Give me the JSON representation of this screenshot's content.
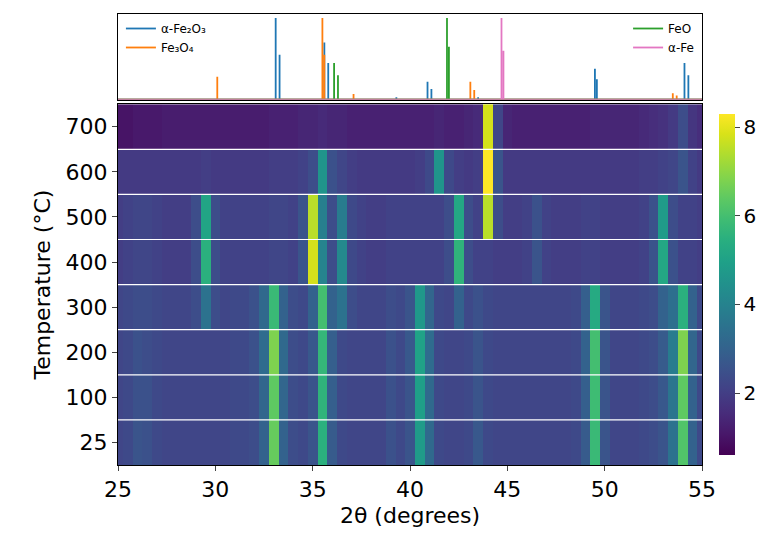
{
  "chart_data": [
    {
      "type": "heatmap",
      "x_label": "2θ (degrees)",
      "y_label": "Temperature (°C)",
      "color": "viridis",
      "xlim": [
        25,
        55
      ],
      "xticks": [
        25,
        30,
        35,
        40,
        45,
        50,
        55
      ],
      "categories": [
        25,
        100,
        200,
        300,
        400,
        500,
        600,
        700
      ],
      "color_range": [
        0.6,
        8.3
      ],
      "color_ticks": [
        2,
        4,
        6,
        8
      ],
      "x": [
        25,
        25.5,
        26,
        26.5,
        27,
        27.5,
        28,
        28.5,
        29,
        29.5,
        30,
        30.5,
        31,
        31.5,
        32,
        32.5,
        33,
        33.5,
        34,
        34.5,
        35,
        35.5,
        36,
        36.5,
        37,
        37.5,
        38,
        38.5,
        39,
        39.5,
        40,
        40.5,
        41,
        41.5,
        42,
        42.5,
        43,
        43.5,
        44,
        44.5,
        45,
        45.5,
        46,
        46.5,
        47,
        47.5,
        48,
        48.5,
        49,
        49.5,
        50,
        50.5,
        51,
        51.5,
        52,
        52.5,
        53,
        53.5,
        54,
        54.5,
        55
      ],
      "cells": [
        [
          2.2,
          2.3,
          2.6,
          2.5,
          2.3,
          2.2,
          2.2,
          2.2,
          2.2,
          2.2,
          2.2,
          2.2,
          2.3,
          2.3,
          2.4,
          3.0,
          6.5,
          3.0,
          2.4,
          2.3,
          2.6,
          5.5,
          2.8,
          2.3,
          2.2,
          2.2,
          2.2,
          2.2,
          2.5,
          2.3,
          2.6,
          4.8,
          3.2,
          2.3,
          2.2,
          2.2,
          2.3,
          2.7,
          2.3,
          2.2,
          2.2,
          2.2,
          2.2,
          2.2,
          2.2,
          2.2,
          2.2,
          2.3,
          2.8,
          5.8,
          2.6,
          2.2,
          2.2,
          2.2,
          2.3,
          2.4,
          2.6,
          3.5,
          6.2,
          3.0,
          2.3
        ],
        [
          2.2,
          2.3,
          2.5,
          2.5,
          2.3,
          2.2,
          2.2,
          2.2,
          2.2,
          2.2,
          2.2,
          2.2,
          2.3,
          2.3,
          2.4,
          3.1,
          6.4,
          3.1,
          2.4,
          2.3,
          2.6,
          5.6,
          2.9,
          2.3,
          2.2,
          2.2,
          2.2,
          2.2,
          2.5,
          2.3,
          2.6,
          4.9,
          3.2,
          2.3,
          2.2,
          2.2,
          2.3,
          2.6,
          2.3,
          2.2,
          2.2,
          2.2,
          2.2,
          2.2,
          2.2,
          2.2,
          2.2,
          2.3,
          2.9,
          5.9,
          2.6,
          2.2,
          2.2,
          2.2,
          2.3,
          2.4,
          2.7,
          3.6,
          6.4,
          3.0,
          2.3
        ],
        [
          2.2,
          2.3,
          2.5,
          2.4,
          2.3,
          2.2,
          2.2,
          2.2,
          2.2,
          2.2,
          2.2,
          2.2,
          2.3,
          2.3,
          2.5,
          3.3,
          6.8,
          3.2,
          2.4,
          2.3,
          2.7,
          5.7,
          2.9,
          2.3,
          2.2,
          2.2,
          2.2,
          2.2,
          2.5,
          2.3,
          2.7,
          5.0,
          3.3,
          2.3,
          2.2,
          2.2,
          2.3,
          2.6,
          2.3,
          2.2,
          2.2,
          2.2,
          2.2,
          2.2,
          2.2,
          2.2,
          2.2,
          2.3,
          3.0,
          6.0,
          2.6,
          2.2,
          2.2,
          2.2,
          2.3,
          2.4,
          2.8,
          3.8,
          6.8,
          3.1,
          2.3
        ],
        [
          2.2,
          2.3,
          2.4,
          2.4,
          2.3,
          2.2,
          2.2,
          2.2,
          2.4,
          3.5,
          2.4,
          2.2,
          2.3,
          2.3,
          2.5,
          3.2,
          5.8,
          3.0,
          2.4,
          2.3,
          3.0,
          6.0,
          3.0,
          3.5,
          2.4,
          2.2,
          2.2,
          2.2,
          2.4,
          2.3,
          2.6,
          4.7,
          3.1,
          2.3,
          2.2,
          3.0,
          2.3,
          2.5,
          2.3,
          2.2,
          2.2,
          2.2,
          2.2,
          2.2,
          2.2,
          2.2,
          2.2,
          2.3,
          2.9,
          5.3,
          2.6,
          2.2,
          2.2,
          2.2,
          2.3,
          2.4,
          3.0,
          3.4,
          5.5,
          3.0,
          2.3
        ],
        [
          2.0,
          2.1,
          2.2,
          2.2,
          2.1,
          2.0,
          2.0,
          2.0,
          2.4,
          5.5,
          2.4,
          2.1,
          2.1,
          2.1,
          2.1,
          2.1,
          2.2,
          2.2,
          2.1,
          2.6,
          7.8,
          4.0,
          2.4,
          4.2,
          2.3,
          2.1,
          2.0,
          2.0,
          2.1,
          2.1,
          2.1,
          2.1,
          2.1,
          2.1,
          2.4,
          5.6,
          2.4,
          2.1,
          2.1,
          2.0,
          2.0,
          2.0,
          2.1,
          2.6,
          2.1,
          2.0,
          2.0,
          2.0,
          2.1,
          2.1,
          2.0,
          2.0,
          2.0,
          2.0,
          2.1,
          2.6,
          5.2,
          2.5,
          2.1,
          2.1,
          2.0
        ],
        [
          2.0,
          2.1,
          2.2,
          2.2,
          2.1,
          2.0,
          2.0,
          2.0,
          2.4,
          5.1,
          2.4,
          2.1,
          2.1,
          2.1,
          2.1,
          2.1,
          2.2,
          2.2,
          2.1,
          2.6,
          7.5,
          3.9,
          2.4,
          3.8,
          2.3,
          2.1,
          2.0,
          2.0,
          2.1,
          2.1,
          2.1,
          2.1,
          2.1,
          2.1,
          2.4,
          5.2,
          2.4,
          2.1,
          7.5,
          2.4,
          2.0,
          2.0,
          2.1,
          2.5,
          2.1,
          2.0,
          2.0,
          2.0,
          2.1,
          2.1,
          2.0,
          2.0,
          2.0,
          2.0,
          2.1,
          2.5,
          4.8,
          2.4,
          2.1,
          2.1,
          2.0
        ],
        [
          1.9,
          1.9,
          1.9,
          1.9,
          1.9,
          1.9,
          1.9,
          1.9,
          1.9,
          2.0,
          1.9,
          1.9,
          1.9,
          1.9,
          1.9,
          1.9,
          2.0,
          2.0,
          2.0,
          2.1,
          2.4,
          4.6,
          2.5,
          2.2,
          2.0,
          1.9,
          1.9,
          1.9,
          1.9,
          1.9,
          1.9,
          2.0,
          2.3,
          4.6,
          2.3,
          2.0,
          1.9,
          2.0,
          8.3,
          2.6,
          1.9,
          1.9,
          1.9,
          1.9,
          1.9,
          1.9,
          1.9,
          1.9,
          1.9,
          1.9,
          1.9,
          1.9,
          1.9,
          1.9,
          2.0,
          2.0,
          2.1,
          2.2,
          2.6,
          2.1,
          1.9
        ],
        [
          1.0,
          1.0,
          1.1,
          1.1,
          1.1,
          1.2,
          1.2,
          1.2,
          1.2,
          1.2,
          1.2,
          1.2,
          1.2,
          1.2,
          1.2,
          1.2,
          1.3,
          1.3,
          1.3,
          1.4,
          1.4,
          1.5,
          1.4,
          1.4,
          1.3,
          1.3,
          1.3,
          1.3,
          1.3,
          1.3,
          1.3,
          1.3,
          1.3,
          1.4,
          1.3,
          1.3,
          1.4,
          1.5,
          7.8,
          2.2,
          1.4,
          1.3,
          1.3,
          1.3,
          1.3,
          1.3,
          1.3,
          1.3,
          1.3,
          1.4,
          1.4,
          1.4,
          1.4,
          1.4,
          1.5,
          1.6,
          1.7,
          1.9,
          2.4,
          1.8,
          1.6
        ]
      ]
    },
    {
      "type": "stick",
      "xlim": [
        25,
        55
      ],
      "ylim": [
        0,
        1.05
      ],
      "tick_labels": false,
      "legend": "top",
      "series": [
        {
          "name": "α-Fe₂O₃",
          "color": "#1f77b4",
          "x": [
            33.1,
            33.3,
            35.6,
            35.8,
            39.3,
            40.9,
            41.1,
            43.5,
            49.5,
            49.6,
            54.1,
            54.3
          ],
          "values": [
            1.0,
            0.55,
            0.7,
            0.45,
            0.03,
            0.22,
            0.13,
            0.03,
            0.38,
            0.25,
            0.45,
            0.3
          ]
        },
        {
          "name": "Fe₃O₄",
          "color": "#ff7f0e",
          "x": [
            30.1,
            35.5,
            35.6,
            37.1,
            43.1,
            43.3,
            53.5,
            53.7
          ],
          "values": [
            0.28,
            1.0,
            0.55,
            0.07,
            0.22,
            0.12,
            0.08,
            0.05
          ]
        },
        {
          "name": "FeO",
          "color": "#2ca02c",
          "x": [
            36.1,
            36.3,
            41.9,
            42.0
          ],
          "values": [
            0.45,
            0.3,
            1.0,
            0.65
          ]
        },
        {
          "name": "α-Fe",
          "color": "#e377c2",
          "x": [
            44.7,
            44.8
          ],
          "values": [
            1.0,
            0.6
          ]
        }
      ]
    }
  ]
}
